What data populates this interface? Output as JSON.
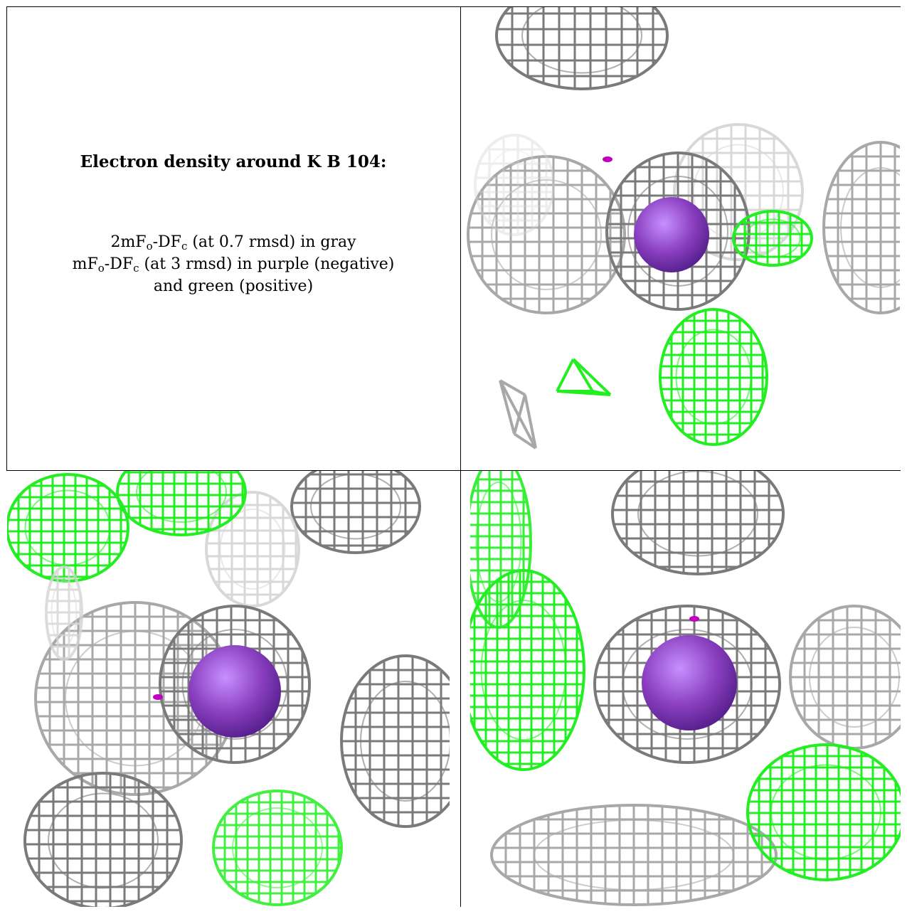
{
  "legend": {
    "title": "Electron density around K B 104:",
    "line1_prefix": "2mF",
    "line1_sub1": "o",
    "line1_mid": "-DF",
    "line1_sub2": "c",
    "line1_suffix": " (at 0.7 rmsd) in gray",
    "line2_prefix": "mF",
    "line2_sub1": "o",
    "line2_mid": "-DF",
    "line2_sub2": "c",
    "line2_suffix": " (at 3 rmsd) in purple (negative)",
    "line3": "and green (positive)"
  },
  "colors": {
    "mesh_gray_dark": "#7a7a7a",
    "mesh_gray_mid": "#a8a8a8",
    "mesh_gray_light": "#d4d4d4",
    "mesh_green": "#22ee22",
    "sphere_purple": "#8a3fc0",
    "negative_blob": "#c000c0"
  },
  "panels": [
    {
      "name": "view-top-right",
      "icon": "density-map-view-1"
    },
    {
      "name": "view-bottom-left",
      "icon": "density-map-view-2"
    },
    {
      "name": "view-bottom-right",
      "icon": "density-map-view-3"
    }
  ]
}
